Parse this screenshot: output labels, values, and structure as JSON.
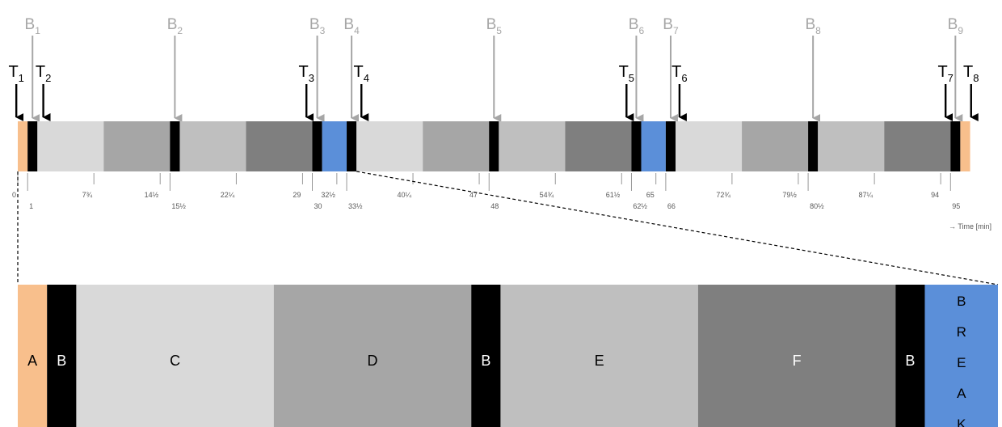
{
  "timeline": {
    "total_min": 96,
    "segments": [
      {
        "label": "A",
        "start": 0,
        "end": 1,
        "color": "#f8bf8c"
      },
      {
        "label": "B",
        "start": 1,
        "end": 2,
        "color": "#000000"
      },
      {
        "label": "C",
        "start": 2,
        "end": 8.75,
        "color": "#d9d9d9"
      },
      {
        "label": "D",
        "start": 8.75,
        "end": 15.5,
        "color": "#a6a6a6"
      },
      {
        "label": "B",
        "start": 15.5,
        "end": 16.5,
        "color": "#000000"
      },
      {
        "label": "E",
        "start": 16.5,
        "end": 23.25,
        "color": "#bfbfbf"
      },
      {
        "label": "F",
        "start": 23.25,
        "end": 30,
        "color": "#7f7f7f"
      },
      {
        "label": "B",
        "start": 30,
        "end": 31,
        "color": "#000000"
      },
      {
        "label": "BREAK",
        "start": 31,
        "end": 33.5,
        "color": "#5b8fd9"
      },
      {
        "label": "B",
        "start": 33.5,
        "end": 34.5,
        "color": "#000000"
      },
      {
        "label": "C",
        "start": 34.5,
        "end": 41.25,
        "color": "#d9d9d9"
      },
      {
        "label": "D",
        "start": 41.25,
        "end": 48,
        "color": "#a6a6a6"
      },
      {
        "label": "B",
        "start": 48,
        "end": 49,
        "color": "#000000"
      },
      {
        "label": "E",
        "start": 49,
        "end": 55.75,
        "color": "#bfbfbf"
      },
      {
        "label": "F",
        "start": 55.75,
        "end": 62.5,
        "color": "#7f7f7f"
      },
      {
        "label": "B",
        "start": 62.5,
        "end": 63.5,
        "color": "#000000"
      },
      {
        "label": "BREAK",
        "start": 63.5,
        "end": 66,
        "color": "#5b8fd9"
      },
      {
        "label": "B",
        "start": 66,
        "end": 67,
        "color": "#000000"
      },
      {
        "label": "C",
        "start": 67,
        "end": 73.75,
        "color": "#d9d9d9"
      },
      {
        "label": "D",
        "start": 73.75,
        "end": 80.5,
        "color": "#a6a6a6"
      },
      {
        "label": "B",
        "start": 80.5,
        "end": 81.5,
        "color": "#000000"
      },
      {
        "label": "E",
        "start": 81.5,
        "end": 88.25,
        "color": "#bfbfbf"
      },
      {
        "label": "F",
        "start": 88.25,
        "end": 95,
        "color": "#7f7f7f"
      },
      {
        "label": "B",
        "start": 95,
        "end": 96,
        "color": "#000000"
      },
      {
        "label": "A",
        "start": 96,
        "end": 97,
        "color": "#f8bf8c"
      }
    ],
    "ticks": [
      {
        "t": 0,
        "label": "0",
        "row": "upper"
      },
      {
        "t": 1,
        "label": "1",
        "row": "lower"
      },
      {
        "t": 7.75,
        "label": "7¾",
        "row": "upper"
      },
      {
        "t": 14.5,
        "label": "14½",
        "row": "upper"
      },
      {
        "t": 15.5,
        "label": "15½",
        "row": "lower"
      },
      {
        "t": 22.25,
        "label": "22¼",
        "row": "upper"
      },
      {
        "t": 29,
        "label": "29",
        "row": "upper"
      },
      {
        "t": 30,
        "label": "30",
        "row": "lower"
      },
      {
        "t": 32.5,
        "label": "32½",
        "row": "upper"
      },
      {
        "t": 33.5,
        "label": "33½",
        "row": "lower"
      },
      {
        "t": 40.25,
        "label": "40¼",
        "row": "upper"
      },
      {
        "t": 47,
        "label": "47",
        "row": "upper"
      },
      {
        "t": 48,
        "label": "48",
        "row": "lower"
      },
      {
        "t": 54.75,
        "label": "54¾",
        "row": "upper"
      },
      {
        "t": 61.5,
        "label": "61½",
        "row": "upper"
      },
      {
        "t": 62.5,
        "label": "62½",
        "row": "lower"
      },
      {
        "t": 65,
        "label": "65",
        "row": "upper"
      },
      {
        "t": 66,
        "label": "66",
        "row": "lower"
      },
      {
        "t": 72.75,
        "label": "72¾",
        "row": "upper"
      },
      {
        "t": 79.5,
        "label": "79½",
        "row": "upper"
      },
      {
        "t": 80.5,
        "label": "80½",
        "row": "lower"
      },
      {
        "t": 87.25,
        "label": "87¼",
        "row": "upper"
      },
      {
        "t": 94,
        "label": "94",
        "row": "upper"
      },
      {
        "t": 95,
        "label": "95",
        "row": "lower"
      }
    ],
    "time_axis_label": "→ Time [min]"
  },
  "b_markers": [
    {
      "base": "B",
      "sub": "1",
      "t": 1.5
    },
    {
      "base": "B",
      "sub": "2",
      "t": 16
    },
    {
      "base": "B",
      "sub": "3",
      "t": 30.5
    },
    {
      "base": "B",
      "sub": "4",
      "t": 34
    },
    {
      "base": "B",
      "sub": "5",
      "t": 48.5
    },
    {
      "base": "B",
      "sub": "6",
      "t": 63
    },
    {
      "base": "B",
      "sub": "7",
      "t": 66.5
    },
    {
      "base": "B",
      "sub": "8",
      "t": 81
    },
    {
      "base": "B",
      "sub": "9",
      "t": 95.5
    }
  ],
  "t_markers": [
    {
      "base": "T",
      "sub": "1",
      "t": -0.15
    },
    {
      "base": "T",
      "sub": "2",
      "t": 2.6
    },
    {
      "base": "T",
      "sub": "3",
      "t": 29.4
    },
    {
      "base": "T",
      "sub": "4",
      "t": 35
    },
    {
      "base": "T",
      "sub": "5",
      "t": 62
    },
    {
      "base": "T",
      "sub": "6",
      "t": 67.4
    },
    {
      "base": "T",
      "sub": "7",
      "t": 94.5
    },
    {
      "base": "T",
      "sub": "8",
      "t": 97.1
    }
  ],
  "zoom": {
    "from_t": 0,
    "to_t": 34.5,
    "blocks": [
      {
        "label": "A",
        "weight": 1,
        "color": "#f8bf8c"
      },
      {
        "label": "B",
        "weight": 1,
        "color": "#000000"
      },
      {
        "label": "C",
        "weight": 6.75,
        "color": "#d9d9d9"
      },
      {
        "label": "D",
        "weight": 6.75,
        "color": "#a6a6a6"
      },
      {
        "label": "B",
        "weight": 1,
        "color": "#000000"
      },
      {
        "label": "E",
        "weight": 6.75,
        "color": "#bfbfbf"
      },
      {
        "label": "F",
        "weight": 6.75,
        "color": "#7f7f7f"
      },
      {
        "label": "B",
        "weight": 1,
        "color": "#000000"
      },
      {
        "label": "BREAK",
        "weight": 2.5,
        "color": "#5b8fd9",
        "vertical": true
      }
    ]
  },
  "colors": {
    "b_marker": "#a6a6a6",
    "t_marker": "#000000",
    "dark_text": "#000000",
    "light_text": "#ffffff",
    "tick": "#7f7f7f",
    "tick_text": "#595959"
  }
}
